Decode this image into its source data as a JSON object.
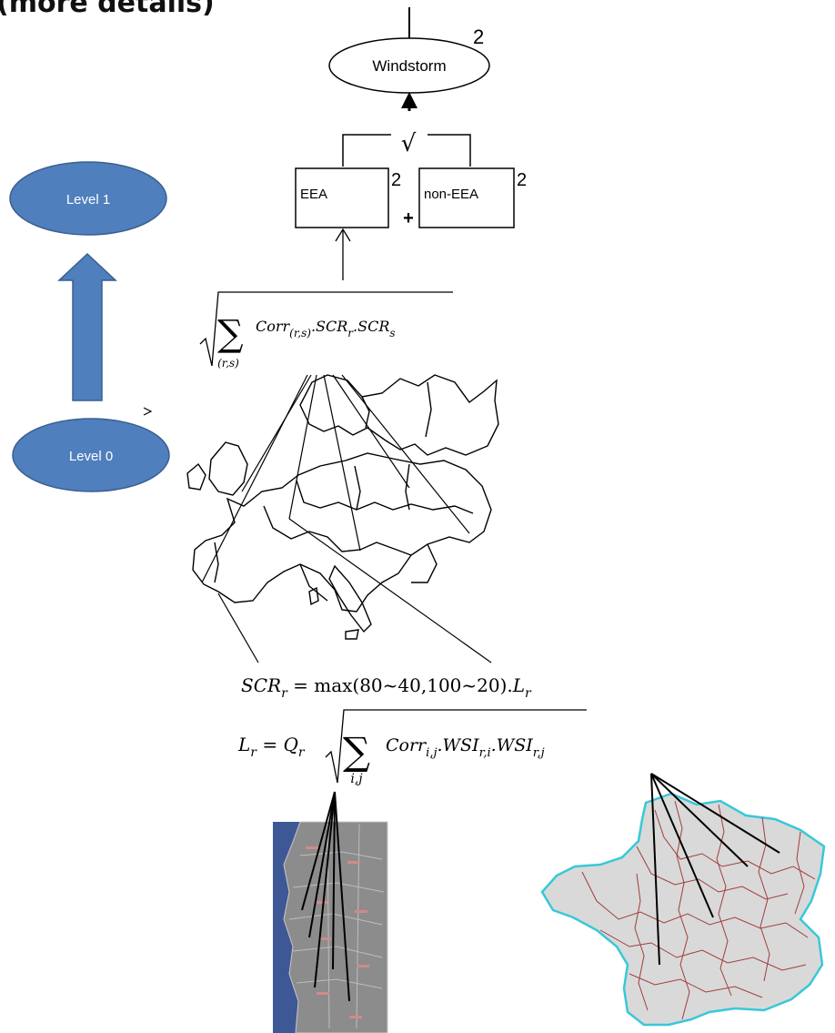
{
  "title": "(more details)",
  "nodes": {
    "windstorm": {
      "label": "Windstorm",
      "exponent": "2"
    },
    "eea": {
      "label": "EEA",
      "exponent": "2"
    },
    "non_eea": {
      "label": "non-EEA",
      "exponent": "2"
    },
    "plus": "+",
    "sqrt_symbol": "√"
  },
  "levels": {
    "level1": "Level 1",
    "level0": "Level 0"
  },
  "colors": {
    "level_fill": "#4f7fbd",
    "level_stroke": "#3a5f8f",
    "portugal_sea": "#3e5896",
    "portugal_land": "#8c8c8c",
    "france_fill": "#d9d9d9",
    "france_border": "#a23c3c",
    "france_coast": "#38c8d8"
  },
  "formulas": {
    "aggregation": {
      "sum": "∑",
      "index": "(r,s)",
      "body": "Corr",
      "sub": "(r,s)",
      "rest1": ".SCR",
      "sub2": "r",
      "rest2": ".SCR",
      "sub3": "s"
    },
    "scr": {
      "lhs": "SCR",
      "lhs_sub": "r",
      "eq": " = max(80~40,100~20).",
      "tail": "L",
      "tail_sub": "r"
    },
    "loss": {
      "lhs": "L",
      "lhs_sub": "r",
      "eq": " = ",
      "q": "Q",
      "q_sub": "r",
      "sum": "∑",
      "index": "i,j",
      "body": "Corr",
      "sub1": "i,j",
      "mid1": ".WSI",
      "sub2": "r,i",
      "mid2": ".WSI",
      "sub3": "r,j"
    }
  }
}
